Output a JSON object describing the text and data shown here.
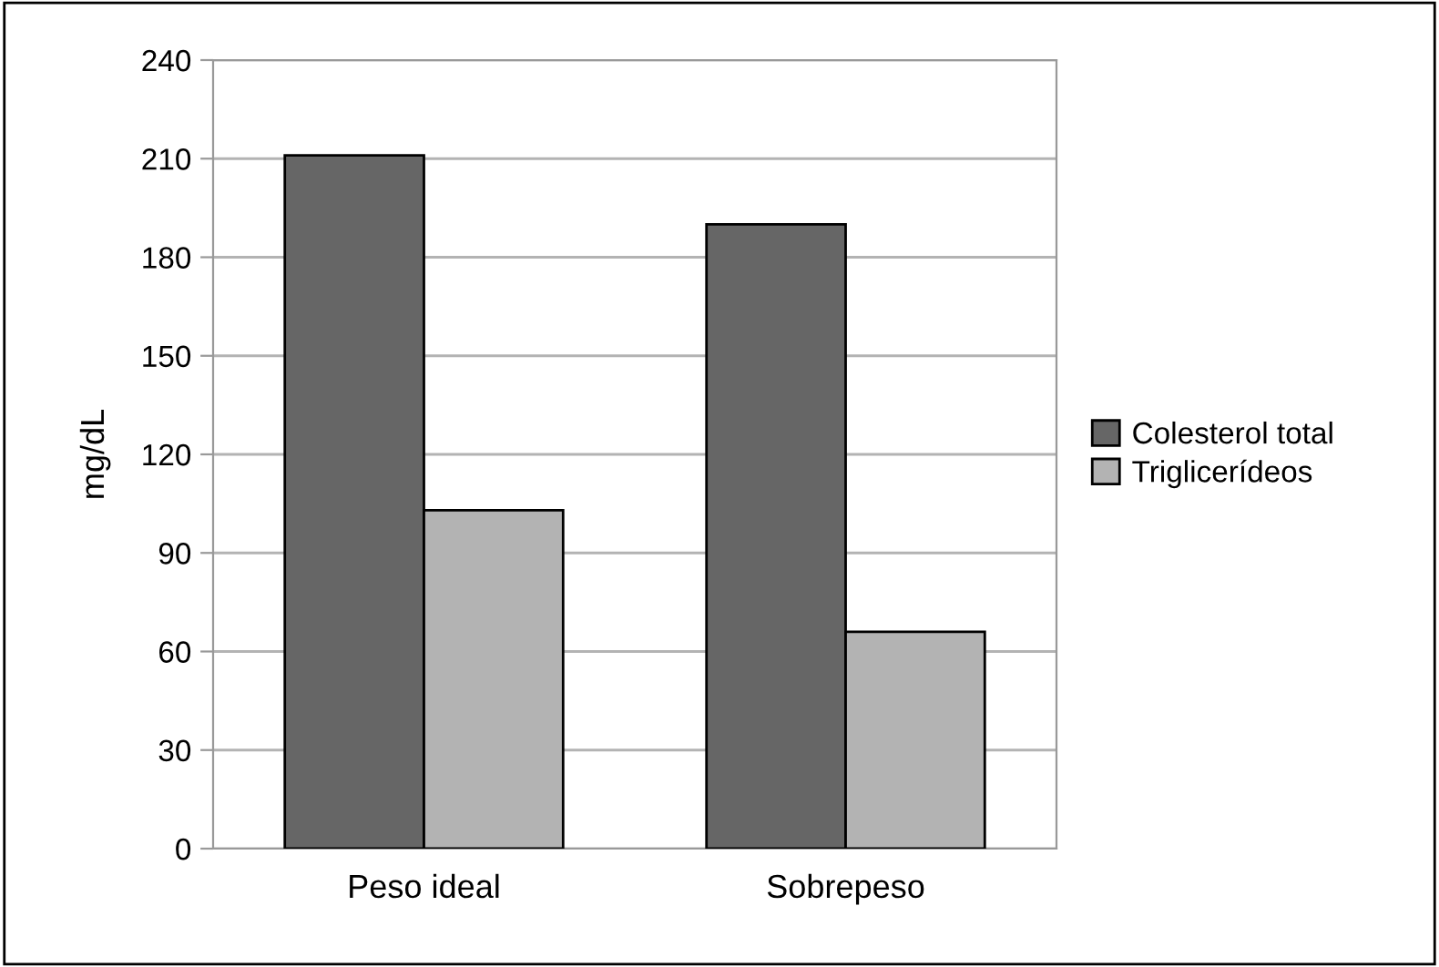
{
  "chart_data": {
    "type": "bar",
    "ylabel": "mg/dL",
    "categories": [
      "Peso ideal",
      "Sobrepeso"
    ],
    "series": [
      {
        "name": "Colesterol total",
        "color": "#666666",
        "values": [
          211,
          190
        ]
      },
      {
        "name": "Triglicerídeos",
        "color": "#b3b3b3",
        "values": [
          103,
          66
        ]
      }
    ],
    "ylim": [
      0,
      240
    ],
    "yticks": [
      0,
      30,
      60,
      90,
      120,
      150,
      180,
      210,
      240
    ],
    "grid": "y",
    "legend": "right"
  }
}
